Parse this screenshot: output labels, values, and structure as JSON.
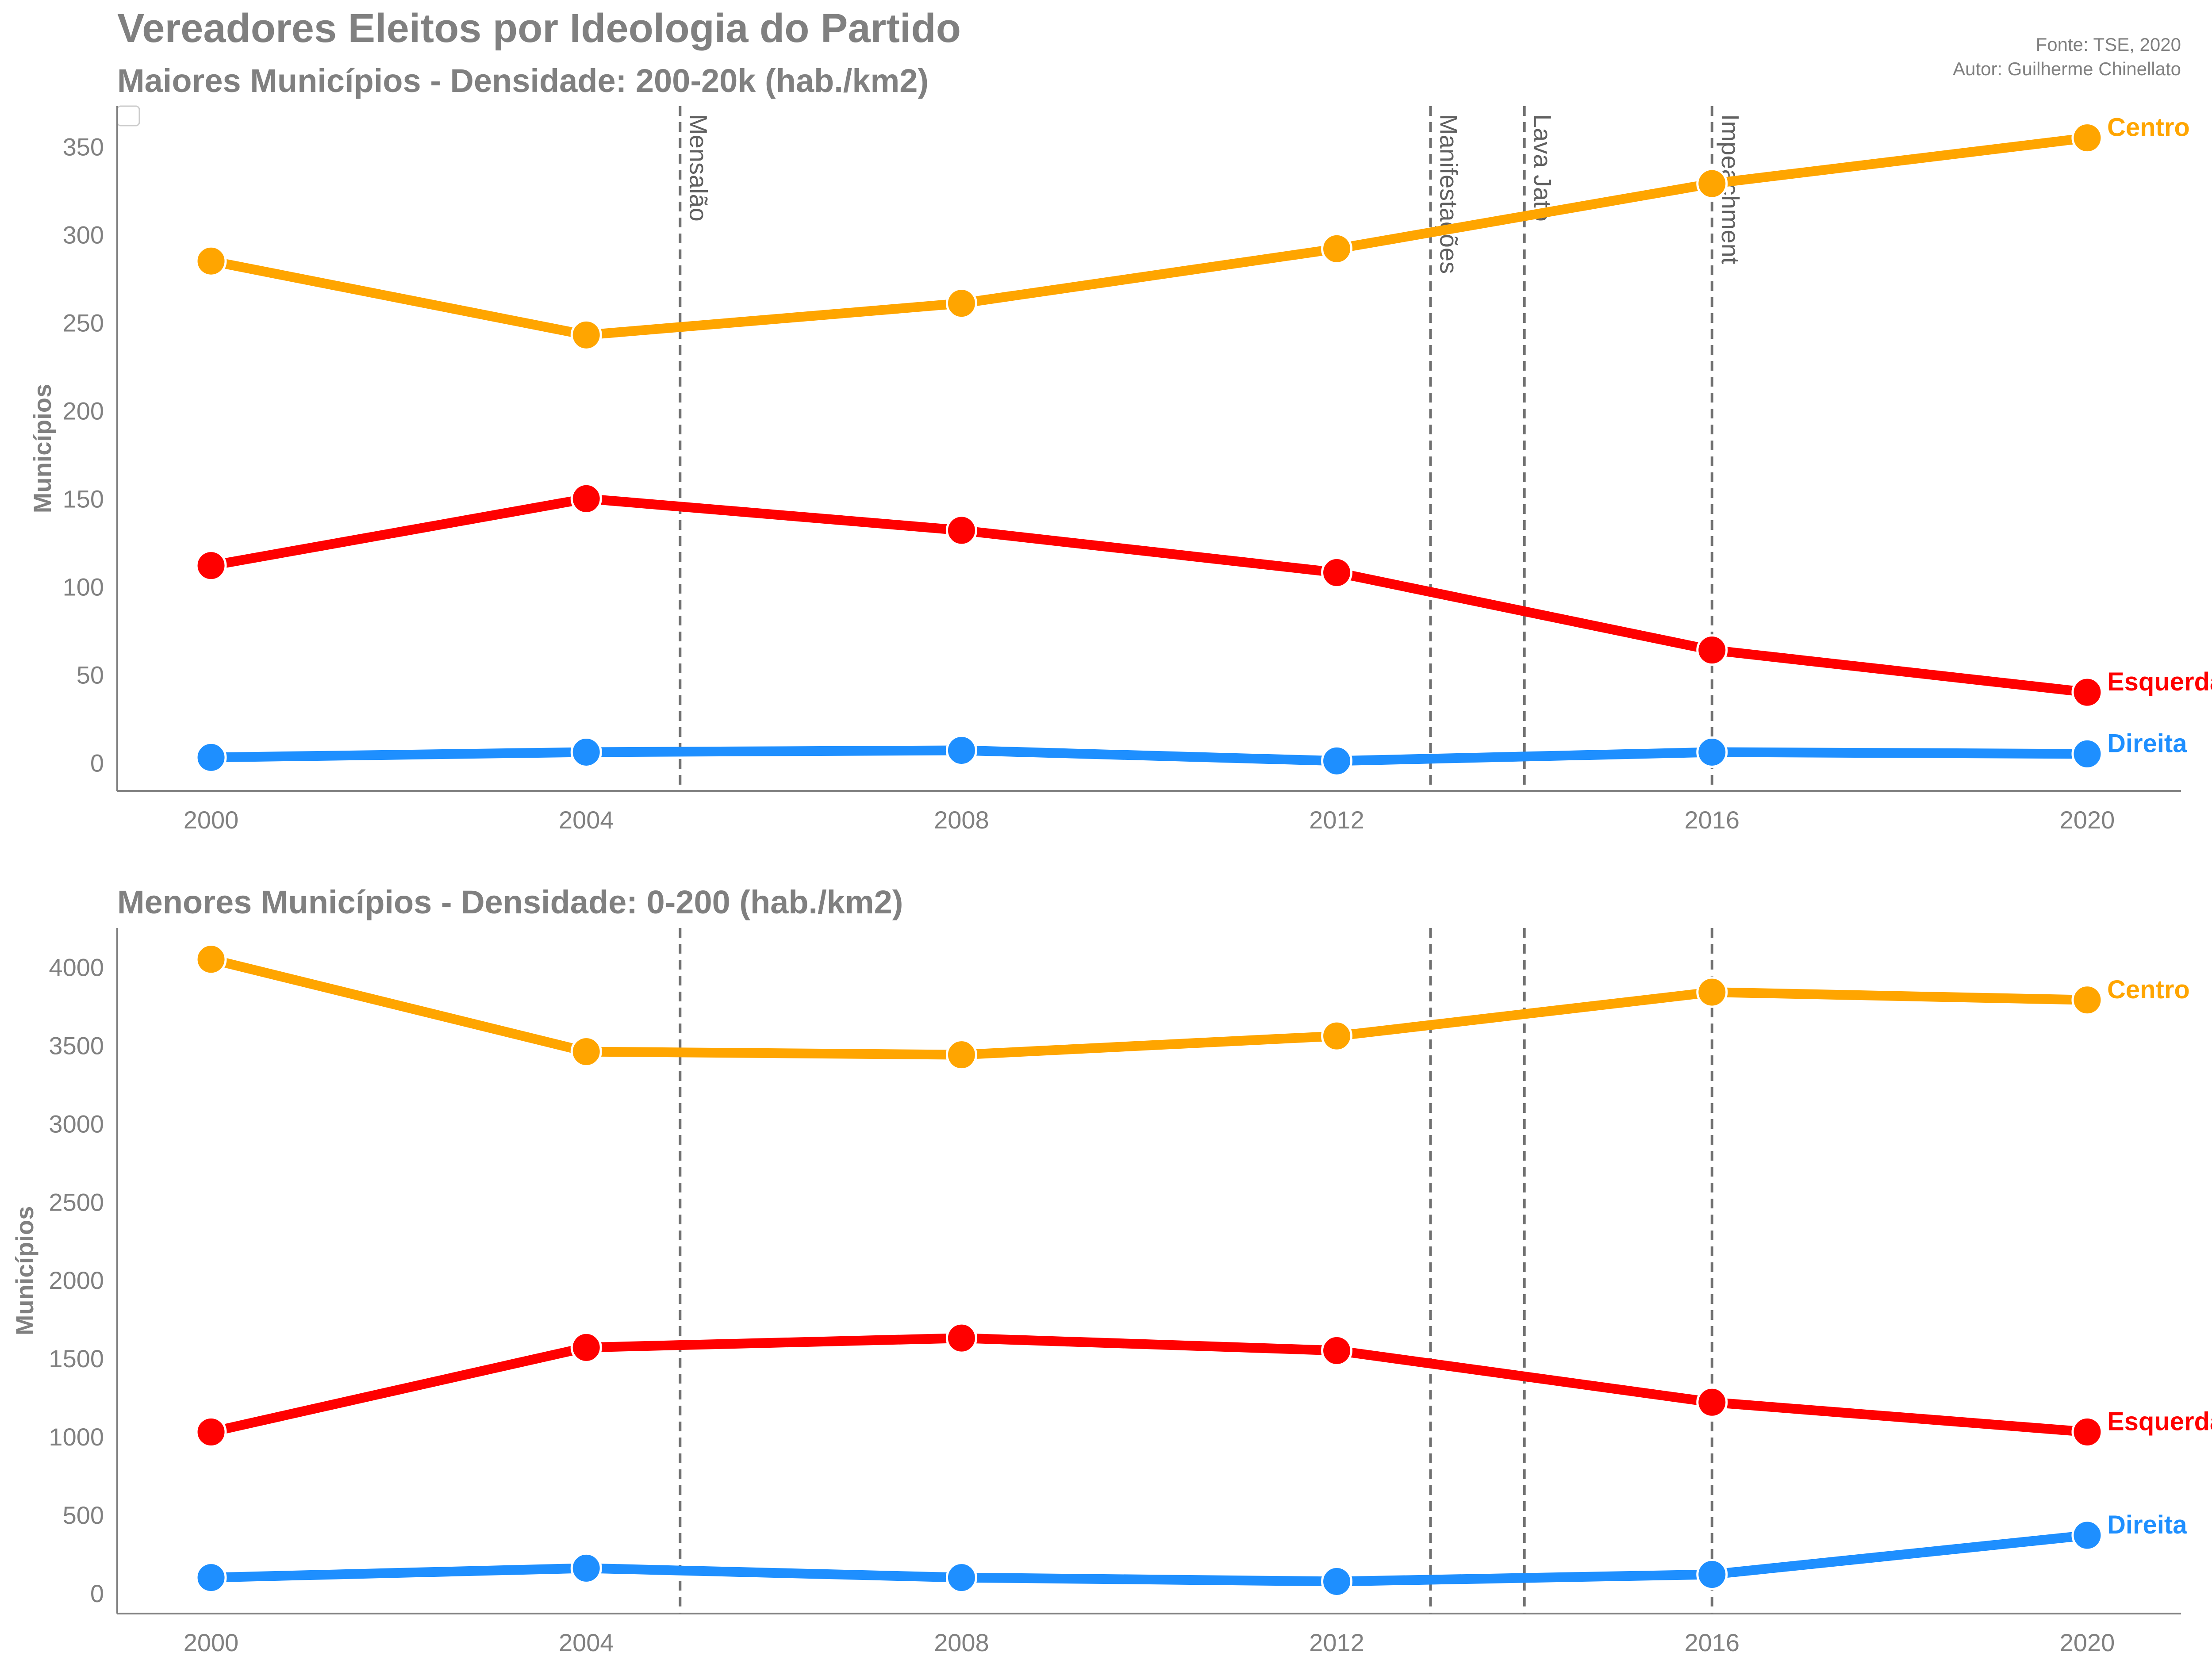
{
  "header": {
    "title": "Vereadores Eleitos por Ideologia do Partido",
    "source": "Fonte: TSE, 2020",
    "author": "Autor: Guilherme Chinellato"
  },
  "events": [
    {
      "label": "Mensalão",
      "x": 2005
    },
    {
      "label": "Manifestações",
      "x": 2013
    },
    {
      "label": "Lava Jato",
      "x": 2014
    },
    {
      "label": "Impeachment",
      "x": 2016
    }
  ],
  "chart_data": [
    {
      "type": "line",
      "title": "Maiores Municípios - Densidade: 200-20k (hab./km2)",
      "xlabel": "",
      "ylabel": "Municípios",
      "x": [
        2000,
        2004,
        2008,
        2012,
        2016,
        2020
      ],
      "xticks": [
        2000,
        2004,
        2008,
        2012,
        2016,
        2020
      ],
      "yticks": [
        0,
        50,
        100,
        150,
        200,
        250,
        300,
        350
      ],
      "xlim": [
        1999,
        2021
      ],
      "ylim": [
        -16,
        373
      ],
      "grid": false,
      "series": [
        {
          "name": "Centro",
          "color": "#FFA500",
          "values": [
            285,
            243,
            261,
            292,
            329,
            355
          ]
        },
        {
          "name": "Esquerda",
          "color": "#FF0000",
          "values": [
            112,
            150,
            132,
            108,
            64,
            40
          ]
        },
        {
          "name": "Direita",
          "color": "#1E8FFF",
          "values": [
            3,
            6,
            7,
            1,
            6,
            5
          ]
        }
      ]
    },
    {
      "type": "line",
      "title": "Menores Municípios - Densidade: 0-200 (hab./km2)",
      "xlabel": "",
      "ylabel": "Municípios",
      "x": [
        2000,
        2004,
        2008,
        2012,
        2016,
        2020
      ],
      "xticks": [
        2000,
        2004,
        2008,
        2012,
        2016,
        2020
      ],
      "yticks": [
        0,
        500,
        1000,
        1500,
        2000,
        2500,
        3000,
        3500,
        4000
      ],
      "xlim": [
        1999,
        2021
      ],
      "ylim": [
        -130,
        4250
      ],
      "grid": false,
      "series": [
        {
          "name": "Centro",
          "color": "#FFA500",
          "values": [
            4050,
            3460,
            3440,
            3560,
            3840,
            3790
          ]
        },
        {
          "name": "Esquerda",
          "color": "#FF0000",
          "values": [
            1030,
            1570,
            1630,
            1550,
            1220,
            1030
          ]
        },
        {
          "name": "Direita",
          "color": "#1E8FFF",
          "values": [
            100,
            160,
            100,
            75,
            120,
            370
          ]
        }
      ]
    }
  ]
}
